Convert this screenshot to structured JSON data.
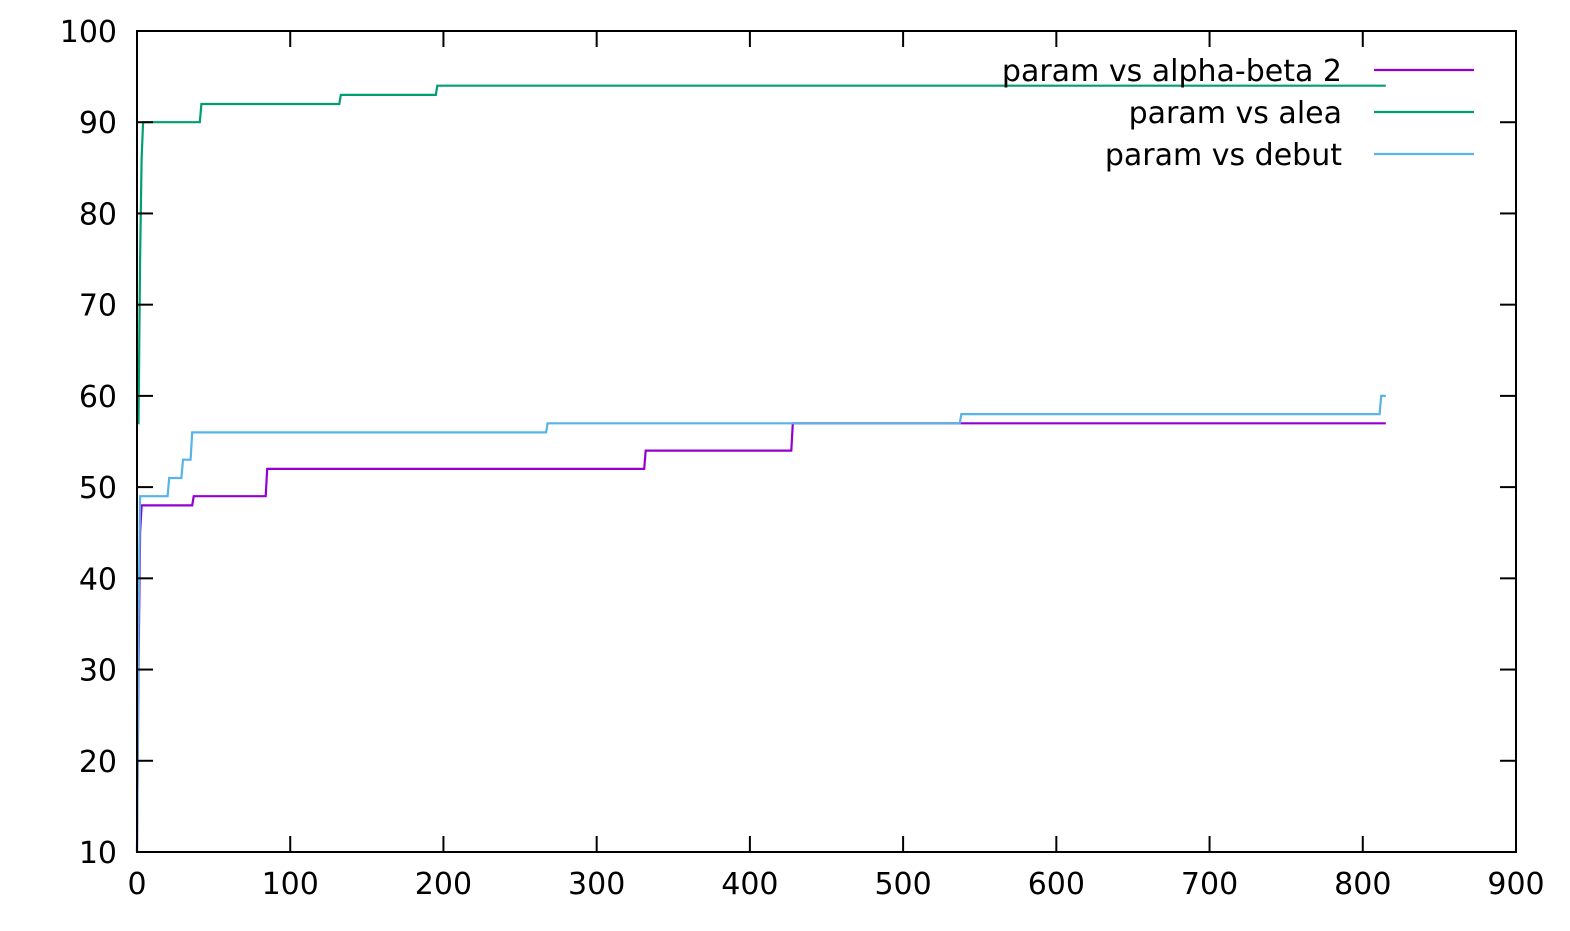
{
  "chart_data": {
    "type": "line",
    "title": "",
    "xlabel": "",
    "ylabel": "",
    "xlim": [
      0,
      900
    ],
    "ylim": [
      10,
      100
    ],
    "x_ticks": [
      0,
      100,
      200,
      300,
      400,
      500,
      600,
      700,
      800,
      900
    ],
    "y_ticks": [
      10,
      20,
      30,
      40,
      50,
      60,
      70,
      80,
      90,
      100
    ],
    "grid": false,
    "legend_position": "top-right",
    "series": [
      {
        "name": "param vs alpha-beta 2",
        "color": "#9400d3",
        "points": [
          [
            0,
            10
          ],
          [
            1,
            30
          ],
          [
            2,
            45
          ],
          [
            3,
            48
          ],
          [
            36,
            48
          ],
          [
            37,
            49
          ],
          [
            84,
            49
          ],
          [
            85,
            52
          ],
          [
            331,
            52
          ],
          [
            332,
            54
          ],
          [
            427,
            54
          ],
          [
            428,
            57
          ],
          [
            815,
            57
          ]
        ]
      },
      {
        "name": "param vs alea",
        "color": "#009e73",
        "points": [
          [
            0,
            57
          ],
          [
            1,
            57
          ],
          [
            2,
            75
          ],
          [
            3,
            86
          ],
          [
            4,
            90
          ],
          [
            41,
            90
          ],
          [
            42,
            92
          ],
          [
            132,
            92
          ],
          [
            133,
            93
          ],
          [
            195,
            93
          ],
          [
            196,
            94
          ],
          [
            815,
            94
          ]
        ]
      },
      {
        "name": "param vs debut",
        "color": "#56b4e9",
        "points": [
          [
            0,
            10
          ],
          [
            1,
            35
          ],
          [
            2,
            49
          ],
          [
            20,
            49
          ],
          [
            21,
            51
          ],
          [
            29,
            51
          ],
          [
            30,
            53
          ],
          [
            35,
            53
          ],
          [
            36,
            56
          ],
          [
            267,
            56
          ],
          [
            268,
            57
          ],
          [
            537,
            57
          ],
          [
            538,
            58
          ],
          [
            811,
            58
          ],
          [
            812,
            60
          ],
          [
            815,
            60
          ]
        ]
      }
    ]
  }
}
